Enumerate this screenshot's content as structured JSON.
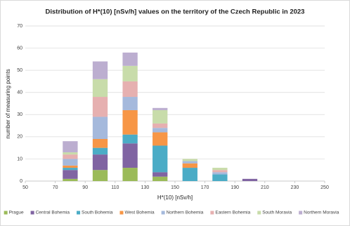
{
  "chart_data": {
    "type": "bar",
    "title": "Distribution  of  H*(10)  [nSv/h]  values on the territory  of the Czech Republic in 2023",
    "x_label": "H*(10) [nSv/h]",
    "y_label": "number of measuring points",
    "stacked": true,
    "x": [
      80,
      100,
      120,
      140,
      160,
      180,
      200
    ],
    "xlim": [
      50,
      250
    ],
    "xticks": [
      50,
      70,
      90,
      110,
      130,
      150,
      170,
      190,
      210,
      230,
      250
    ],
    "ylim": [
      0,
      70
    ],
    "yticks": [
      0,
      10,
      20,
      30,
      40,
      50,
      60,
      70
    ],
    "grid": true,
    "legend": "bottom",
    "series": [
      {
        "name": "Prague",
        "color": "#9bbb59",
        "values": [
          1,
          5,
          6,
          2,
          0,
          0,
          0
        ]
      },
      {
        "name": "Central Bohemia",
        "color": "#8064a2",
        "values": [
          4,
          7,
          11,
          2,
          0,
          0,
          1
        ]
      },
      {
        "name": "South Bohemia",
        "color": "#4bacc6",
        "values": [
          1,
          3,
          4,
          12,
          6,
          3,
          0
        ]
      },
      {
        "name": "West Bohemia",
        "color": "#f79646",
        "values": [
          1,
          4,
          11,
          6,
          2,
          0,
          0
        ]
      },
      {
        "name": "Northern Bohemia",
        "color": "#a5b9dc",
        "values": [
          3,
          10,
          6,
          2,
          1,
          1,
          0
        ]
      },
      {
        "name": "Eastern Bohemia",
        "color": "#e6b0b0",
        "values": [
          2,
          9,
          7,
          2,
          0,
          1,
          0
        ]
      },
      {
        "name": "South Moravia",
        "color": "#c8dcaa",
        "values": [
          1,
          8,
          7,
          6,
          1,
          1,
          0
        ]
      },
      {
        "name": "Northern Moravia",
        "color": "#bcaed0",
        "values": [
          5,
          8,
          6,
          1,
          0,
          0,
          0
        ]
      }
    ]
  }
}
